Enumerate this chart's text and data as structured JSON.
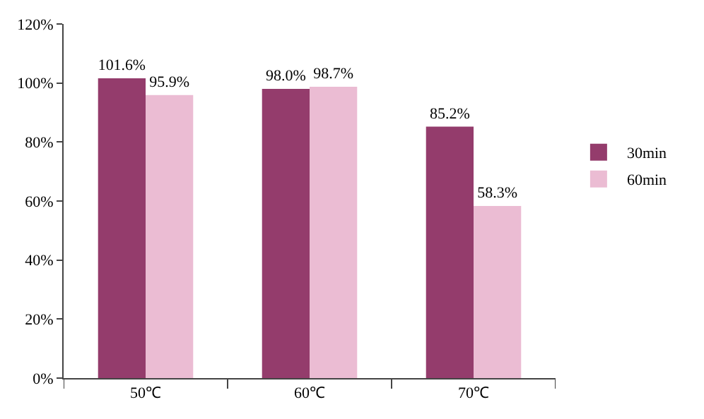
{
  "chart_data": {
    "type": "bar",
    "categories": [
      "50℃",
      "60℃",
      "70℃"
    ],
    "series": [
      {
        "name": "30min",
        "color": "#943c6c",
        "values": [
          101.6,
          98.0,
          85.2
        ],
        "value_labels": [
          "101.6%",
          "98.0%",
          "85.2%"
        ]
      },
      {
        "name": "60min",
        "color": "#ebbcd3",
        "values": [
          95.9,
          98.7,
          58.3
        ],
        "value_labels": [
          "95.9%",
          "98.7%",
          "58.3%"
        ]
      }
    ],
    "ylim": [
      0,
      120
    ],
    "yticks": [
      {
        "value": 0,
        "label": "0%"
      },
      {
        "value": 20,
        "label": "20%"
      },
      {
        "value": 40,
        "label": "40%"
      },
      {
        "value": 60,
        "label": "60%"
      },
      {
        "value": 80,
        "label": "80%"
      },
      {
        "value": 100,
        "label": "100%"
      },
      {
        "value": 120,
        "label": "120%"
      }
    ],
    "legend": "right"
  }
}
